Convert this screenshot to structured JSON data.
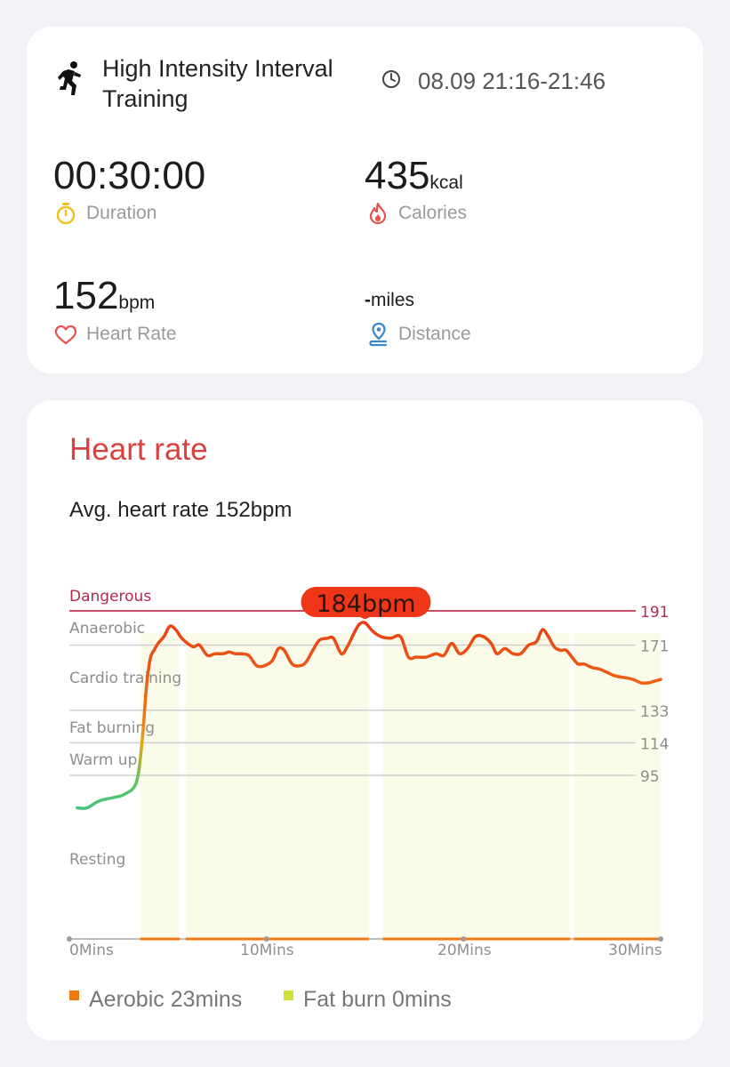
{
  "summary": {
    "workout_title": "High Intensity Interval Training",
    "time_range": "08.09 21:16-21:46",
    "duration": {
      "value": "00:30:00",
      "label": "Duration"
    },
    "calories": {
      "value": "435",
      "unit": "kcal",
      "label": "Calories"
    },
    "heart_rate": {
      "value": "152",
      "unit": "bpm",
      "label": "Heart Rate"
    },
    "distance": {
      "value": "-",
      "unit": "miles",
      "label": "Distance"
    }
  },
  "heart_rate_section": {
    "title": "Heart rate",
    "average_text": "Avg. heart rate 152bpm",
    "peak_label": "184bpm",
    "legend": [
      {
        "label": "Aerobic 23mins",
        "color": "#ef7a12"
      },
      {
        "label": "Fat burn 0mins",
        "color": "#cfe03a"
      }
    ]
  },
  "chart_data": {
    "type": "line",
    "unit": "bpm",
    "x_ticks": [
      "0Mins",
      "10Mins",
      "20Mins",
      "30Mins"
    ],
    "xlim": [
      0,
      30
    ],
    "zones": [
      {
        "name": "Dangerous",
        "threshold": 191
      },
      {
        "name": "Anaerobic",
        "threshold": 171
      },
      {
        "name": "Cardio training",
        "threshold": 133
      },
      {
        "name": "Fat burning",
        "threshold": 114
      },
      {
        "name": "Warm up",
        "threshold": 95
      },
      {
        "name": "Resting",
        "threshold": null
      }
    ],
    "threshold_labels": [
      "191",
      "171",
      "133",
      "114",
      "95"
    ],
    "peak": {
      "x": 15.0,
      "y": 184
    },
    "series": [
      {
        "x": [
          0.4,
          0.9,
          1.5,
          2.2,
          2.8,
          3.4,
          3.7,
          3.9,
          4.1,
          4.3,
          4.5,
          4.8,
          5.1,
          5.4,
          5.7,
          6.0,
          6.3,
          6.6,
          7.0,
          7.4,
          7.8,
          8.1,
          8.4,
          8.7,
          9.1,
          9.5,
          9.9,
          10.3,
          10.6,
          10.9,
          11.3,
          11.7,
          12.0,
          12.4,
          12.7,
          13.1,
          13.4,
          13.8,
          14.1,
          14.4,
          14.7,
          15.0,
          15.4,
          15.8,
          16.3,
          16.8,
          17.2,
          17.6,
          18.1,
          18.6,
          19.0,
          19.4,
          19.8,
          20.2,
          20.6,
          21.0,
          21.4,
          21.7,
          22.1,
          22.5,
          22.9,
          23.3,
          23.7,
          24.0,
          24.3,
          24.6,
          24.9,
          25.2,
          25.5,
          25.8,
          26.1,
          26.5,
          26.9,
          27.3,
          27.7,
          28.2,
          28.6,
          29.0,
          29.4,
          29.7,
          30.0
        ],
        "y": [
          76,
          76,
          80,
          82,
          84,
          91,
          116,
          145,
          163,
          168,
          172,
          176,
          182,
          180,
          175,
          172,
          170,
          171,
          165,
          166,
          166,
          167,
          166,
          166,
          165,
          159,
          159,
          162,
          169,
          168,
          160,
          159,
          161,
          169,
          174,
          175,
          175,
          166,
          170,
          177,
          183,
          184,
          179,
          176,
          175,
          176,
          164,
          164,
          164,
          166,
          165,
          172,
          166,
          169,
          176,
          176,
          172,
          166,
          169,
          166,
          166,
          171,
          173,
          180,
          176,
          170,
          168,
          168,
          164,
          160,
          160,
          158,
          157,
          155,
          153,
          152,
          151,
          149,
          149,
          150,
          151
        ]
      }
    ]
  }
}
